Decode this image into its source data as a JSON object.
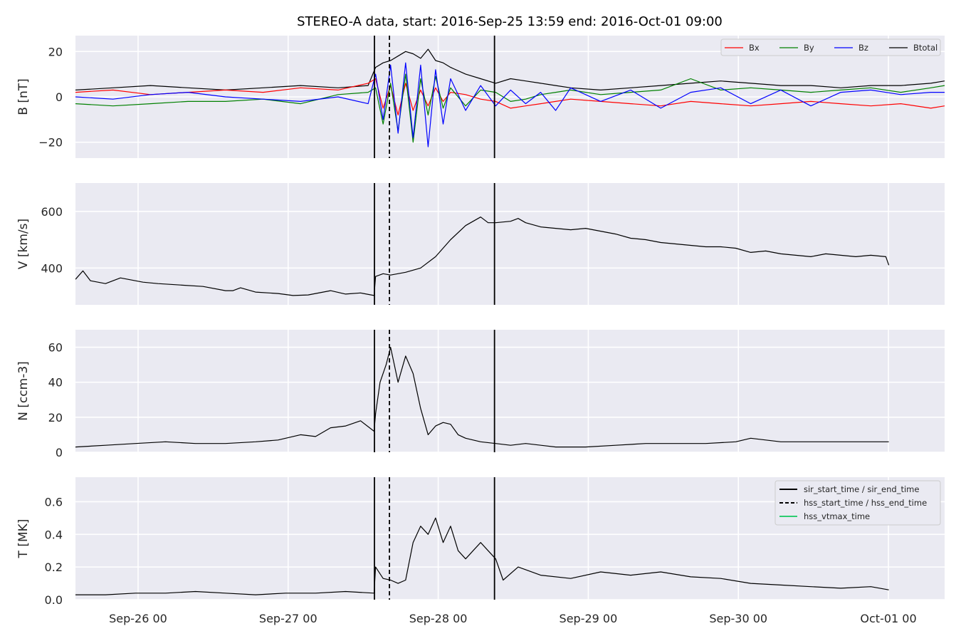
{
  "title": "STEREO-A data, start: 2016-Sep-25 13:59  end: 2016-Oct-01 09:00",
  "x_axis": {
    "ticks": [
      {
        "value": 0.4174,
        "label": "Sep-26 00"
      },
      {
        "value": 1.4174,
        "label": "Sep-27 00"
      },
      {
        "value": 2.4174,
        "label": "Sep-28 00"
      },
      {
        "value": 3.4174,
        "label": "Sep-29 00"
      },
      {
        "value": 4.4174,
        "label": "Sep-30 00"
      },
      {
        "value": 5.4174,
        "label": "Oct-01 00"
      }
    ]
  },
  "colors": {
    "panel_bg": "#EAEAF2",
    "grid": "#FFFFFF",
    "Bx": "#FF0000",
    "By": "#008000",
    "Bz": "#0000FF",
    "Btotal": "#000000",
    "vtmax": "#2ECC71"
  },
  "chart_data": [
    {
      "type": "line",
      "ylabel": "B [nT]",
      "xlim": [
        0,
        5.792
      ],
      "ylim": [
        -27,
        27
      ],
      "yticks": [
        {
          "value": 20,
          "label": "20"
        },
        {
          "value": 0,
          "label": "0"
        },
        {
          "value": -20,
          "label": "−20"
        }
      ],
      "legend": {
        "placement": "top-right",
        "entries": [
          "Bx",
          "By",
          "Bz",
          "Btotal"
        ]
      },
      "series": [
        {
          "name": "Btotal",
          "color": "#000000",
          "x": [
            0,
            0.25,
            0.5,
            0.75,
            1.0,
            1.25,
            1.5,
            1.75,
            1.95,
            2.0,
            2.05,
            2.1,
            2.15,
            2.2,
            2.25,
            2.3,
            2.35,
            2.4,
            2.45,
            2.5,
            2.6,
            2.7,
            2.8,
            2.9,
            3.0,
            3.1,
            3.2,
            3.3,
            3.5,
            3.7,
            3.9,
            4.1,
            4.3,
            4.5,
            4.7,
            4.9,
            5.1,
            5.3,
            5.5,
            5.7,
            5.792
          ],
          "y": [
            3,
            4,
            5,
            4,
            3,
            4,
            5,
            4,
            5,
            13,
            15,
            16,
            18,
            20,
            19,
            17,
            21,
            16,
            15,
            13,
            10,
            8,
            6,
            8,
            7,
            6,
            5,
            4,
            3,
            4,
            5,
            6,
            7,
            6,
            5,
            5,
            4,
            5,
            5,
            6,
            7
          ]
        },
        {
          "name": "Bx",
          "color": "#FF0000",
          "x": [
            0,
            0.25,
            0.5,
            0.75,
            1.0,
            1.25,
            1.5,
            1.75,
            1.95,
            2.0,
            2.05,
            2.1,
            2.15,
            2.2,
            2.25,
            2.3,
            2.35,
            2.4,
            2.45,
            2.5,
            2.6,
            2.7,
            2.8,
            2.9,
            3.0,
            3.1,
            3.2,
            3.3,
            3.5,
            3.7,
            3.9,
            4.1,
            4.3,
            4.5,
            4.7,
            4.9,
            5.1,
            5.3,
            5.5,
            5.7,
            5.792
          ],
          "y": [
            2,
            3,
            1,
            2,
            3,
            2,
            4,
            3,
            6,
            8,
            -5,
            5,
            -8,
            6,
            -6,
            3,
            -4,
            4,
            -2,
            2,
            1,
            -1,
            -2,
            -5,
            -4,
            -3,
            -2,
            -1,
            -2,
            -3,
            -4,
            -2,
            -3,
            -4,
            -3,
            -2,
            -3,
            -4,
            -3,
            -5,
            -4
          ]
        },
        {
          "name": "By",
          "color": "#008000",
          "x": [
            0,
            0.25,
            0.5,
            0.75,
            1.0,
            1.25,
            1.5,
            1.75,
            1.95,
            2.0,
            2.05,
            2.1,
            2.15,
            2.2,
            2.25,
            2.3,
            2.35,
            2.4,
            2.45,
            2.5,
            2.6,
            2.7,
            2.8,
            2.9,
            3.0,
            3.1,
            3.2,
            3.3,
            3.5,
            3.7,
            3.9,
            4.1,
            4.3,
            4.5,
            4.7,
            4.9,
            5.1,
            5.3,
            5.5,
            5.7,
            5.792
          ],
          "y": [
            -3,
            -4,
            -3,
            -2,
            -2,
            -1,
            -3,
            1,
            2,
            4,
            -12,
            6,
            -15,
            10,
            -20,
            8,
            -8,
            9,
            -5,
            4,
            -4,
            3,
            2,
            -2,
            -1,
            1,
            2,
            3,
            1,
            2,
            3,
            8,
            3,
            4,
            3,
            2,
            3,
            4,
            2,
            4,
            5
          ]
        },
        {
          "name": "Bz",
          "color": "#0000FF",
          "x": [
            0,
            0.25,
            0.5,
            0.75,
            1.0,
            1.25,
            1.5,
            1.75,
            1.95,
            2.0,
            2.05,
            2.1,
            2.15,
            2.2,
            2.25,
            2.3,
            2.35,
            2.4,
            2.45,
            2.5,
            2.6,
            2.7,
            2.8,
            2.9,
            3.0,
            3.1,
            3.2,
            3.3,
            3.5,
            3.7,
            3.9,
            4.1,
            4.3,
            4.5,
            4.7,
            4.9,
            5.1,
            5.3,
            5.5,
            5.7,
            5.792
          ],
          "y": [
            0,
            -1,
            1,
            2,
            0,
            -1,
            -2,
            0,
            -3,
            10,
            -10,
            14,
            -16,
            15,
            -18,
            14,
            -22,
            12,
            -12,
            8,
            -6,
            5,
            -4,
            3,
            -3,
            2,
            -6,
            4,
            -2,
            3,
            -5,
            2,
            4,
            -3,
            3,
            -4,
            2,
            3,
            1,
            2,
            2
          ]
        }
      ],
      "vlines": [
        {
          "x": 1.9924,
          "style": "solid"
        },
        {
          "x": 2.0924,
          "style": "dashed"
        },
        {
          "x": 2.7924,
          "style": "solid"
        }
      ]
    },
    {
      "type": "line",
      "ylabel": "V [km/s]",
      "xlim": [
        0,
        5.792
      ],
      "ylim": [
        270,
        700
      ],
      "yticks": [
        {
          "value": 600,
          "label": "600"
        },
        {
          "value": 400,
          "label": "400"
        }
      ],
      "series": [
        {
          "name": "",
          "color": "#000000",
          "x": [
            0,
            0.05,
            0.1,
            0.2,
            0.3,
            0.45,
            0.55,
            0.7,
            0.85,
            1.0,
            1.05,
            1.1,
            1.2,
            1.35,
            1.45,
            1.55,
            1.7,
            1.8,
            1.9,
            1.99,
            2.0,
            2.05,
            2.1,
            2.2,
            2.3,
            2.4,
            2.5,
            2.6,
            2.7,
            2.75,
            2.8,
            2.9,
            2.95,
            3.0,
            3.1,
            3.2,
            3.3,
            3.4,
            3.5,
            3.6,
            3.7,
            3.8,
            3.9,
            4.0,
            4.1,
            4.2,
            4.3,
            4.4,
            4.5,
            4.6,
            4.7,
            4.8,
            4.9,
            5.0,
            5.1,
            5.2,
            5.3,
            5.4,
            5.42
          ],
          "y": [
            360,
            390,
            355,
            345,
            365,
            350,
            345,
            340,
            335,
            320,
            320,
            330,
            315,
            310,
            303,
            305,
            320,
            308,
            312,
            303,
            370,
            380,
            375,
            385,
            400,
            440,
            500,
            550,
            580,
            560,
            560,
            565,
            575,
            560,
            545,
            540,
            535,
            540,
            530,
            520,
            505,
            500,
            490,
            485,
            480,
            475,
            475,
            470,
            455,
            460,
            450,
            445,
            440,
            450,
            445,
            440,
            445,
            440,
            410
          ]
        }
      ],
      "vlines": [
        {
          "x": 1.9924,
          "style": "solid"
        },
        {
          "x": 2.0924,
          "style": "dashed"
        },
        {
          "x": 2.7924,
          "style": "solid"
        }
      ]
    },
    {
      "type": "line",
      "ylabel": "N [ccm-3]",
      "xlim": [
        0,
        5.792
      ],
      "ylim": [
        0,
        70
      ],
      "yticks": [
        {
          "value": 60,
          "label": "60"
        },
        {
          "value": 40,
          "label": "40"
        },
        {
          "value": 20,
          "label": "20"
        },
        {
          "value": 0,
          "label": "0"
        }
      ],
      "series": [
        {
          "name": "",
          "color": "#000000",
          "x": [
            0,
            0.2,
            0.4,
            0.6,
            0.8,
            1.0,
            1.2,
            1.35,
            1.5,
            1.6,
            1.7,
            1.8,
            1.9,
            1.99,
            2.0,
            2.03,
            2.07,
            2.1,
            2.15,
            2.2,
            2.25,
            2.3,
            2.35,
            2.4,
            2.45,
            2.5,
            2.55,
            2.6,
            2.7,
            2.8,
            2.9,
            3.0,
            3.2,
            3.4,
            3.6,
            3.8,
            4.0,
            4.2,
            4.4,
            4.5,
            4.6,
            4.7,
            4.8,
            5.0,
            5.2,
            5.42
          ],
          "y": [
            3,
            4,
            5,
            6,
            5,
            5,
            6,
            7,
            10,
            9,
            14,
            15,
            18,
            12,
            22,
            40,
            50,
            60,
            40,
            55,
            45,
            25,
            10,
            15,
            17,
            16,
            10,
            8,
            6,
            5,
            4,
            5,
            3,
            3,
            4,
            5,
            5,
            5,
            6,
            8,
            7,
            6,
            6,
            6,
            6,
            6
          ]
        }
      ],
      "vlines": [
        {
          "x": 1.9924,
          "style": "solid"
        },
        {
          "x": 2.0924,
          "style": "dashed"
        },
        {
          "x": 2.7924,
          "style": "solid"
        }
      ]
    },
    {
      "type": "line",
      "ylabel": "T [MK]",
      "xlim": [
        0,
        5.792
      ],
      "ylim": [
        0,
        0.75
      ],
      "yticks": [
        {
          "value": 0.6,
          "label": "0.6"
        },
        {
          "value": 0.4,
          "label": "0.4"
        },
        {
          "value": 0.2,
          "label": "0.2"
        },
        {
          "value": 0.0,
          "label": "0.0"
        }
      ],
      "legend": {
        "placement": "top-right",
        "entries": [
          "sir_start_time / sir_end_time",
          "hss_start_time / hss_end_time",
          "hss_vtmax_time"
        ]
      },
      "series": [
        {
          "name": "",
          "color": "#000000",
          "x": [
            0,
            0.2,
            0.4,
            0.6,
            0.8,
            1.0,
            1.2,
            1.4,
            1.6,
            1.8,
            1.99,
            2.0,
            2.05,
            2.1,
            2.15,
            2.2,
            2.25,
            2.3,
            2.35,
            2.4,
            2.45,
            2.5,
            2.55,
            2.6,
            2.65,
            2.7,
            2.75,
            2.8,
            2.85,
            2.95,
            3.1,
            3.3,
            3.5,
            3.7,
            3.9,
            4.1,
            4.3,
            4.5,
            4.7,
            4.9,
            5.1,
            5.3,
            5.42
          ],
          "y": [
            0.03,
            0.03,
            0.04,
            0.04,
            0.05,
            0.04,
            0.03,
            0.04,
            0.04,
            0.05,
            0.04,
            0.2,
            0.13,
            0.12,
            0.1,
            0.12,
            0.35,
            0.45,
            0.4,
            0.5,
            0.35,
            0.45,
            0.3,
            0.25,
            0.3,
            0.35,
            0.3,
            0.25,
            0.12,
            0.2,
            0.15,
            0.13,
            0.17,
            0.15,
            0.17,
            0.14,
            0.13,
            0.1,
            0.09,
            0.08,
            0.07,
            0.08,
            0.06
          ]
        }
      ],
      "vlines": [
        {
          "x": 1.9924,
          "style": "solid"
        },
        {
          "x": 2.0924,
          "style": "dashed"
        },
        {
          "x": 2.7924,
          "style": "solid"
        }
      ]
    }
  ]
}
